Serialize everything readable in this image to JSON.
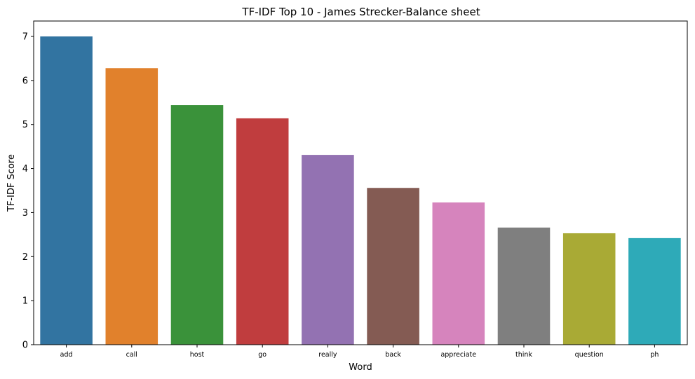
{
  "chart_data": {
    "type": "bar",
    "title": "TF-IDF Top 10 - James Strecker-Balance sheet",
    "xlabel": "Word",
    "ylabel": "TF-IDF Score",
    "categories": [
      "add",
      "call",
      "host",
      "go",
      "really",
      "back",
      "appreciate",
      "think",
      "question",
      "ph"
    ],
    "values": [
      7.0,
      6.28,
      5.44,
      5.14,
      4.31,
      3.56,
      3.23,
      2.66,
      2.53,
      2.42
    ],
    "colors": [
      "#3274a1",
      "#e1812c",
      "#3a923a",
      "#c03d3e",
      "#9372b2",
      "#845b53",
      "#d684bd",
      "#7f7f7f",
      "#a9aa35",
      "#2eaab8"
    ],
    "ylim": [
      0,
      7.35
    ],
    "yticks": [
      0,
      1,
      2,
      3,
      4,
      5,
      6,
      7
    ],
    "grid": false,
    "legend": "none"
  }
}
